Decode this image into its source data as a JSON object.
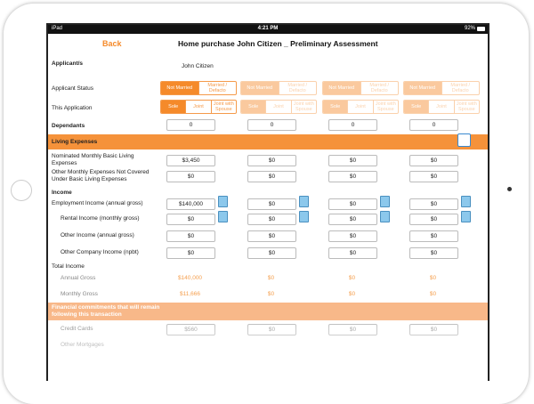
{
  "status_bar": {
    "carrier": "iPad",
    "time": "4:21 PM",
    "battery": "92%"
  },
  "nav": {
    "back": "Back",
    "title": "Home purchase John Citizen _ Preliminary Assessment"
  },
  "applicants": {
    "label": "Applicant/s",
    "name": "John Citizen"
  },
  "applicant_status": {
    "label": "Applicant Status",
    "options": [
      "Not Married",
      "Married / Defacto"
    ]
  },
  "this_application": {
    "label": "This Application",
    "options": [
      "Sole",
      "Joint",
      "Joint with Spouse"
    ]
  },
  "dependants": {
    "label": "Dependants",
    "values": [
      "0",
      "0",
      "0",
      "0"
    ]
  },
  "living_expenses": {
    "title": "Living Expenses",
    "rows": [
      {
        "label": "Nominated Monthly Basic Living Expenses",
        "values": [
          "$3,450",
          "$0",
          "$0",
          "$0"
        ]
      },
      {
        "label": "Other Monthly Expenses Not Covered Under Basic Living Expenses",
        "values": [
          "$0",
          "$0",
          "$0",
          "$0"
        ]
      }
    ]
  },
  "income": {
    "title": "Income",
    "rows": [
      {
        "label": "Employment Income (annual gross)",
        "values": [
          "$140,000",
          "$0",
          "$0",
          "$0"
        ]
      },
      {
        "label": "Rental Income (monthly gross)",
        "values": [
          "$0",
          "$0",
          "$0",
          "$0"
        ]
      },
      {
        "label": "Other Income (annual gross)",
        "values": [
          "$0",
          "$0",
          "$0",
          "$0"
        ]
      },
      {
        "label": "Other Company Income (npbt)",
        "values": [
          "$0",
          "$0",
          "$0",
          "$0"
        ]
      }
    ]
  },
  "total_income": {
    "title": "Total Income",
    "rows": [
      {
        "label": "Annual Gross",
        "values": [
          "$140,000",
          "$0",
          "$0",
          "$0"
        ]
      },
      {
        "label": "Monthly Gross",
        "values": [
          "$11,666",
          "$0",
          "$0",
          "$0"
        ]
      }
    ]
  },
  "financial_commitments": {
    "title": "Financial commitments that will remain following this transaction",
    "rows": [
      {
        "label": "Credit Cards",
        "values": [
          "$560",
          "$0",
          "$0",
          "$0"
        ]
      },
      {
        "label": "Other Mortgages"
      }
    ]
  }
}
